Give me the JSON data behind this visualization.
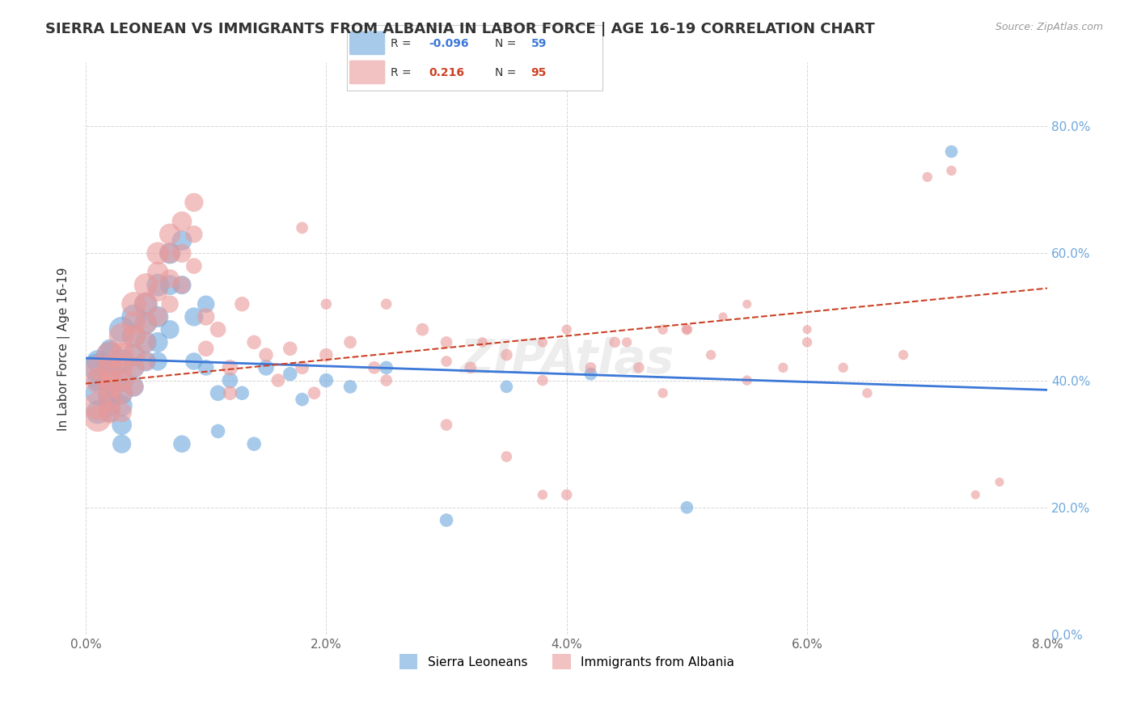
{
  "title": "SIERRA LEONEAN VS IMMIGRANTS FROM ALBANIA IN LABOR FORCE | AGE 16-19 CORRELATION CHART",
  "source": "Source: ZipAtlas.com",
  "xlabel_bottom": "",
  "ylabel": "In Labor Force | Age 16-19",
  "x_min": 0.0,
  "x_max": 0.08,
  "y_min": 0.0,
  "y_max": 0.9,
  "x_ticks": [
    0.0,
    0.02,
    0.04,
    0.06,
    0.08
  ],
  "x_tick_labels": [
    "0.0%",
    "2.0%",
    "4.0%",
    "6.0%",
    "8.0%"
  ],
  "y_ticks": [
    0.0,
    0.2,
    0.4,
    0.6,
    0.8
  ],
  "y_tick_labels": [
    "0.0%",
    "20.0%",
    "40.0%",
    "60.0%",
    "80.0%"
  ],
  "watermark": "ZIPAtlas",
  "blue_R": "-0.096",
  "blue_N": "59",
  "pink_R": "0.216",
  "pink_N": "95",
  "blue_color": "#6fa8dc",
  "pink_color": "#ea9999",
  "blue_line_color": "#3c78d8",
  "pink_line_color": "#cc4125",
  "legend_label_blue": "Sierra Leoneans",
  "legend_label_pink": "Immigrants from Albania",
  "blue_scatter_x": [
    0.001,
    0.001,
    0.001,
    0.001,
    0.001,
    0.002,
    0.002,
    0.002,
    0.002,
    0.002,
    0.002,
    0.002,
    0.002,
    0.003,
    0.003,
    0.003,
    0.003,
    0.003,
    0.003,
    0.003,
    0.004,
    0.004,
    0.004,
    0.004,
    0.004,
    0.005,
    0.005,
    0.005,
    0.005,
    0.006,
    0.006,
    0.006,
    0.006,
    0.007,
    0.007,
    0.007,
    0.008,
    0.008,
    0.008,
    0.009,
    0.009,
    0.01,
    0.01,
    0.011,
    0.011,
    0.012,
    0.013,
    0.014,
    0.015,
    0.017,
    0.018,
    0.02,
    0.022,
    0.025,
    0.03,
    0.035,
    0.042,
    0.05,
    0.072
  ],
  "blue_scatter_y": [
    0.42,
    0.38,
    0.35,
    0.43,
    0.4,
    0.44,
    0.42,
    0.4,
    0.38,
    0.37,
    0.36,
    0.35,
    0.45,
    0.48,
    0.43,
    0.4,
    0.38,
    0.36,
    0.33,
    0.3,
    0.5,
    0.47,
    0.44,
    0.42,
    0.39,
    0.52,
    0.49,
    0.46,
    0.43,
    0.55,
    0.5,
    0.46,
    0.43,
    0.6,
    0.55,
    0.48,
    0.62,
    0.55,
    0.3,
    0.5,
    0.43,
    0.52,
    0.42,
    0.38,
    0.32,
    0.4,
    0.38,
    0.3,
    0.42,
    0.41,
    0.37,
    0.4,
    0.39,
    0.42,
    0.18,
    0.39,
    0.41,
    0.2,
    0.76
  ],
  "blue_scatter_size": [
    80,
    60,
    55,
    50,
    45,
    70,
    65,
    60,
    55,
    50,
    45,
    40,
    35,
    65,
    60,
    55,
    50,
    45,
    40,
    35,
    60,
    55,
    50,
    45,
    40,
    55,
    50,
    45,
    40,
    50,
    45,
    40,
    35,
    45,
    40,
    35,
    40,
    35,
    30,
    35,
    30,
    30,
    25,
    25,
    20,
    25,
    20,
    20,
    25,
    20,
    18,
    20,
    18,
    18,
    18,
    16,
    16,
    16,
    16
  ],
  "pink_scatter_x": [
    0.001,
    0.001,
    0.001,
    0.001,
    0.002,
    0.002,
    0.002,
    0.002,
    0.002,
    0.002,
    0.003,
    0.003,
    0.003,
    0.003,
    0.003,
    0.003,
    0.004,
    0.004,
    0.004,
    0.004,
    0.004,
    0.004,
    0.005,
    0.005,
    0.005,
    0.005,
    0.005,
    0.006,
    0.006,
    0.006,
    0.006,
    0.007,
    0.007,
    0.007,
    0.007,
    0.008,
    0.008,
    0.008,
    0.009,
    0.009,
    0.009,
    0.01,
    0.01,
    0.011,
    0.012,
    0.012,
    0.013,
    0.014,
    0.015,
    0.016,
    0.017,
    0.018,
    0.019,
    0.02,
    0.022,
    0.024,
    0.025,
    0.028,
    0.03,
    0.032,
    0.035,
    0.038,
    0.04,
    0.042,
    0.044,
    0.046,
    0.048,
    0.05,
    0.052,
    0.055,
    0.058,
    0.06,
    0.063,
    0.065,
    0.068,
    0.07,
    0.072,
    0.074,
    0.076,
    0.03,
    0.035,
    0.038,
    0.018,
    0.02,
    0.025,
    0.03,
    0.033,
    0.038,
    0.04,
    0.045,
    0.048,
    0.05,
    0.053,
    0.055,
    0.06
  ],
  "pink_scatter_y": [
    0.36,
    0.34,
    0.4,
    0.42,
    0.44,
    0.42,
    0.39,
    0.37,
    0.35,
    0.4,
    0.47,
    0.44,
    0.42,
    0.4,
    0.38,
    0.35,
    0.52,
    0.49,
    0.47,
    0.44,
    0.42,
    0.39,
    0.55,
    0.52,
    0.49,
    0.46,
    0.43,
    0.6,
    0.57,
    0.54,
    0.5,
    0.63,
    0.6,
    0.56,
    0.52,
    0.65,
    0.6,
    0.55,
    0.68,
    0.63,
    0.58,
    0.5,
    0.45,
    0.48,
    0.42,
    0.38,
    0.52,
    0.46,
    0.44,
    0.4,
    0.45,
    0.42,
    0.38,
    0.44,
    0.46,
    0.42,
    0.4,
    0.48,
    0.46,
    0.42,
    0.44,
    0.4,
    0.22,
    0.42,
    0.46,
    0.42,
    0.38,
    0.48,
    0.44,
    0.4,
    0.42,
    0.46,
    0.42,
    0.38,
    0.44,
    0.72,
    0.73,
    0.22,
    0.24,
    0.33,
    0.28,
    0.22,
    0.64,
    0.52,
    0.52,
    0.43,
    0.46,
    0.46,
    0.48,
    0.46,
    0.48,
    0.48,
    0.5,
    0.52,
    0.48
  ],
  "pink_scatter_size": [
    80,
    70,
    65,
    60,
    70,
    65,
    60,
    55,
    50,
    45,
    65,
    60,
    55,
    50,
    45,
    40,
    60,
    55,
    50,
    45,
    40,
    35,
    55,
    50,
    45,
    40,
    35,
    50,
    45,
    40,
    35,
    45,
    40,
    35,
    30,
    40,
    35,
    30,
    35,
    30,
    25,
    30,
    25,
    25,
    25,
    20,
    22,
    20,
    20,
    18,
    20,
    18,
    16,
    18,
    16,
    16,
    14,
    16,
    14,
    14,
    14,
    12,
    12,
    12,
    12,
    12,
    10,
    12,
    10,
    10,
    10,
    10,
    10,
    10,
    10,
    10,
    10,
    8,
    8,
    14,
    12,
    10,
    14,
    12,
    12,
    12,
    10,
    10,
    10,
    10,
    10,
    8,
    8,
    8,
    8
  ],
  "blue_trend_x": [
    0.0,
    0.08
  ],
  "blue_trend_y": [
    0.435,
    0.385
  ],
  "pink_trend_x": [
    0.0,
    0.08
  ],
  "pink_trend_y": [
    0.395,
    0.545
  ],
  "background_color": "#ffffff",
  "grid_color": "#cccccc",
  "title_fontsize": 13,
  "axis_label_fontsize": 11,
  "tick_fontsize": 11,
  "right_tick_color": "#6fa8dc",
  "top_tick_color": "#6fa8dc"
}
